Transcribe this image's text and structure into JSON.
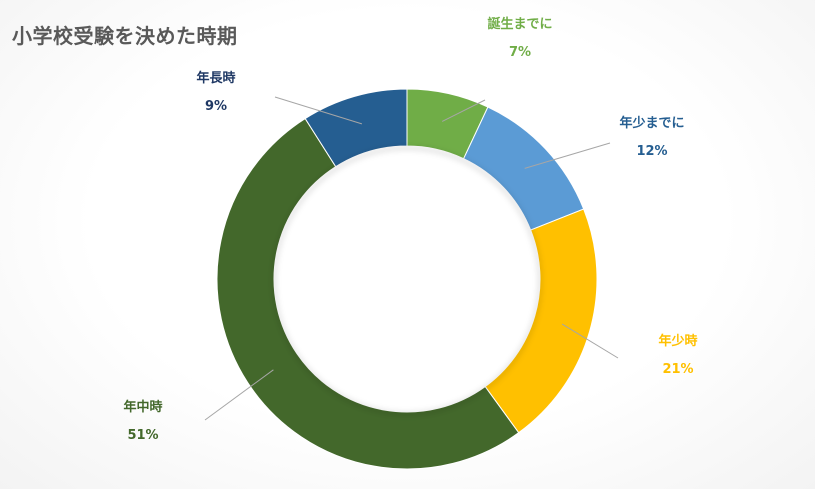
{
  "chart_data": {
    "type": "pie",
    "title": "小学校受験を決めた時期",
    "categories": [
      "誕生までに",
      "年少までに",
      "年少時",
      "年中時",
      "年長時"
    ],
    "values": [
      7,
      12,
      21,
      51,
      9
    ],
    "value_labels": [
      "7%",
      "12%",
      "21%",
      "51%",
      "9%"
    ],
    "colors": [
      "#70ad47",
      "#5b9bd5",
      "#ffc000",
      "#43682b",
      "#255e91"
    ],
    "label_colors": [
      "#70ad47",
      "#255e91",
      "#ffc000",
      "#43682b",
      "#1f3864"
    ],
    "legend": "none",
    "grid": false
  }
}
